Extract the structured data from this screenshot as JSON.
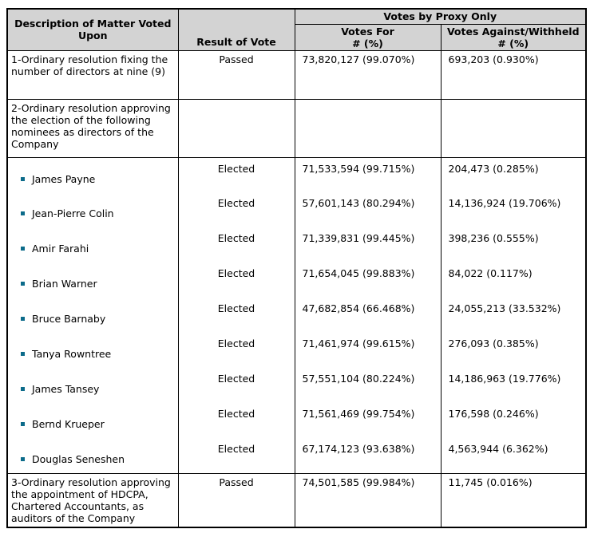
{
  "table": {
    "header": {
      "description": "Description of Matter Voted Upon",
      "result": "Result of Vote",
      "proxy_group": "Votes by Proxy Only",
      "votes_for": "Votes For",
      "votes_against": "Votes Against/Withheld",
      "count_pct": "# (%)"
    },
    "matters": [
      {
        "description": "1-Ordinary resolution fixing the number of directors at nine (9)",
        "result": "Passed",
        "votes_for": "73,820,127 (99.070%)",
        "votes_against": "693,203 (0.930%)"
      },
      {
        "description": "2-Ordinary resolution approving the election of the following nominees as directors of the Company",
        "result": "",
        "votes_for": "",
        "votes_against": ""
      },
      {
        "description": "3-Ordinary resolution approving the appointment of HDCPA, Chartered Accountants, as auditors of the Company",
        "result": "Passed",
        "votes_for": "74,501,585 (99.984%)",
        "votes_against": "11,745 (0.016%)"
      }
    ],
    "nominees": [
      {
        "name": "James Payne",
        "result": "Elected",
        "votes_for": "71,533,594 (99.715%)",
        "votes_against": "204,473 (0.285%)"
      },
      {
        "name": "Jean-Pierre Colin",
        "result": "Elected",
        "votes_for": "57,601,143 (80.294%)",
        "votes_against": "14,136,924 (19.706%)"
      },
      {
        "name": "Amir Farahi",
        "result": "Elected",
        "votes_for": "71,339,831 (99.445%)",
        "votes_against": "398,236 (0.555%)"
      },
      {
        "name": "Brian Warner",
        "result": "Elected",
        "votes_for": "71,654,045 (99.883%)",
        "votes_against": "84,022 (0.117%)"
      },
      {
        "name": "Bruce Barnaby",
        "result": "Elected",
        "votes_for": "47,682,854 (66.468%)",
        "votes_against": "24,055,213 (33.532%)"
      },
      {
        "name": "Tanya Rowntree",
        "result": "Elected",
        "votes_for": "71,461,974 (99.615%)",
        "votes_against": "276,093 (0.385%)"
      },
      {
        "name": "James Tansey",
        "result": "Elected",
        "votes_for": "57,551,104 (80.224%)",
        "votes_against": "14,186,963 (19.776%)"
      },
      {
        "name": "Bernd Krueper",
        "result": "Elected",
        "votes_for": "71,561,469 (99.754%)",
        "votes_against": "176,598 (0.246%)"
      },
      {
        "name": "Douglas Seneshen",
        "result": "Elected",
        "votes_for": "67,174,123 (93.638%)",
        "votes_against": "4,563,944 (6.362%)"
      }
    ],
    "colors": {
      "header_bg": "#d3d3d3",
      "border": "#000000",
      "bullet": "#0c6b8a"
    }
  }
}
